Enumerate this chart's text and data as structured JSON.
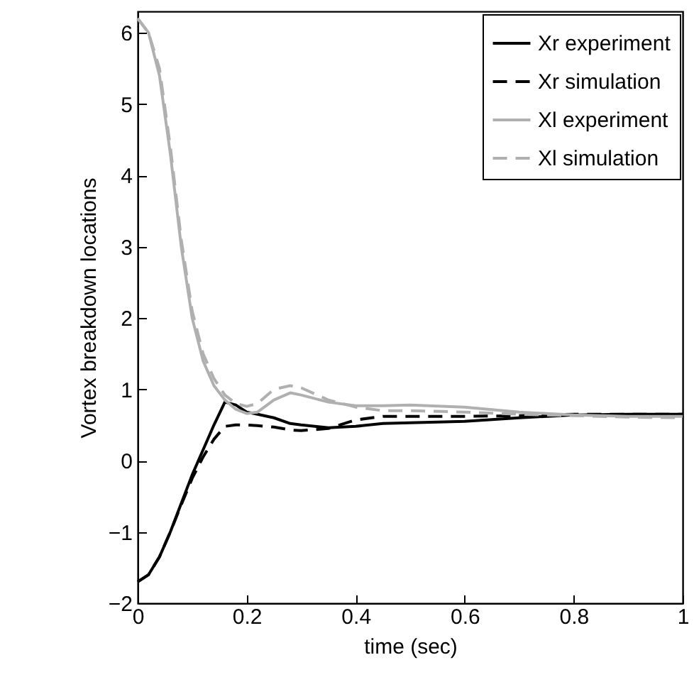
{
  "chart_data": {
    "type": "line",
    "xlabel": "time (sec)",
    "ylabel": "Vortex breakdown locations",
    "xlim": [
      0,
      1
    ],
    "xticks": [
      0,
      0.2,
      0.4,
      0.6,
      0.8,
      1
    ],
    "ylim": [
      -2,
      6.3
    ],
    "yticks": [
      -2,
      -1,
      0,
      1,
      2,
      3,
      4,
      5,
      6
    ],
    "grid": false,
    "legend": "top right",
    "marker": "none",
    "x": [
      0,
      0.02,
      0.04,
      0.06,
      0.08,
      0.1,
      0.12,
      0.14,
      0.16,
      0.18,
      0.2,
      0.22,
      0.25,
      0.28,
      0.3,
      0.35,
      0.4,
      0.45,
      0.5,
      0.6,
      0.7,
      0.8,
      0.9,
      1
    ],
    "series": [
      {
        "name": "Xr experiment",
        "color": "#000000",
        "line_style": "solid",
        "values": [
          -1.7,
          -1.6,
          -1.35,
          -1.0,
          -0.6,
          -0.2,
          0.15,
          0.5,
          0.82,
          0.78,
          0.68,
          0.65,
          0.6,
          0.52,
          0.5,
          0.46,
          0.48,
          0.52,
          0.53,
          0.55,
          0.6,
          0.64,
          0.65,
          0.65
        ]
      },
      {
        "name": "Xr simulation",
        "color": "#000000",
        "line_style": "dashed",
        "values": [
          -1.7,
          -1.6,
          -1.35,
          -1.0,
          -0.62,
          -0.25,
          0.05,
          0.3,
          0.48,
          0.5,
          0.5,
          0.49,
          0.47,
          0.43,
          0.42,
          0.45,
          0.57,
          0.62,
          0.62,
          0.62,
          0.63,
          0.65,
          0.65,
          0.65
        ]
      },
      {
        "name": "Xl experiment",
        "color": "#b0b0b0",
        "line_style": "solid",
        "values": [
          6.2,
          6.0,
          5.4,
          4.3,
          3.0,
          2.0,
          1.4,
          1.05,
          0.85,
          0.72,
          0.66,
          0.68,
          0.85,
          0.95,
          0.92,
          0.82,
          0.77,
          0.77,
          0.78,
          0.75,
          0.68,
          0.64,
          0.62,
          0.62
        ]
      },
      {
        "name": "Xl simulation",
        "color": "#b0b0b0",
        "line_style": "dashed",
        "values": [
          6.2,
          6.0,
          5.5,
          4.4,
          3.1,
          2.1,
          1.5,
          1.15,
          0.92,
          0.8,
          0.76,
          0.8,
          1.0,
          1.05,
          1.02,
          0.85,
          0.75,
          0.7,
          0.7,
          0.68,
          0.65,
          0.63,
          0.61,
          0.6
        ]
      }
    ]
  }
}
